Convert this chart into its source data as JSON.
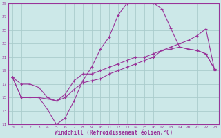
{
  "xlabel": "Windchill (Refroidissement éolien,°C)",
  "background_color": "#cce8e8",
  "grid_color": "#aacccc",
  "line_color": "#993399",
  "xlim": [
    -0.5,
    23.5
  ],
  "ylim": [
    11,
    29
  ],
  "yticks": [
    11,
    13,
    15,
    17,
    19,
    21,
    23,
    25,
    27,
    29
  ],
  "xticks": [
    0,
    1,
    2,
    3,
    4,
    5,
    6,
    7,
    8,
    9,
    10,
    11,
    12,
    13,
    14,
    15,
    16,
    17,
    18,
    19,
    20,
    21,
    22,
    23
  ],
  "line1_x": [
    0,
    1,
    2,
    3,
    4,
    5,
    6,
    7,
    8,
    9,
    10,
    11,
    12,
    13,
    14,
    15,
    16,
    17,
    18,
    19,
    20,
    21,
    22,
    23
  ],
  "line1_y": [
    18.0,
    17.0,
    17.0,
    16.5,
    15.0,
    14.5,
    15.0,
    16.2,
    17.2,
    17.5,
    17.8,
    18.5,
    19.0,
    19.5,
    20.0,
    20.5,
    21.0,
    22.0,
    22.5,
    23.0,
    23.5,
    24.2,
    25.2,
    19.0
  ],
  "line2_x": [
    0,
    1,
    3,
    4,
    5,
    6,
    7,
    8,
    9,
    10,
    11,
    12,
    13,
    14,
    15,
    16,
    17,
    18,
    19,
    20,
    21,
    22,
    23
  ],
  "line2_y": [
    18.0,
    15.0,
    15.0,
    13.2,
    11.0,
    12.0,
    14.5,
    17.5,
    19.5,
    22.2,
    24.0,
    27.2,
    29.0,
    29.2,
    29.2,
    29.1,
    28.2,
    25.3,
    22.5,
    22.2,
    22.0,
    21.5,
    19.2
  ],
  "line3_x": [
    0,
    1,
    2,
    3,
    4,
    5,
    6,
    7,
    8,
    9,
    10,
    11,
    12,
    13,
    14,
    15,
    16,
    17,
    18,
    19,
    20,
    21,
    22,
    23
  ],
  "line3_y": [
    18.0,
    15.0,
    15.0,
    15.0,
    14.8,
    14.5,
    15.5,
    17.5,
    18.5,
    18.5,
    19.0,
    19.5,
    20.0,
    20.5,
    21.0,
    21.0,
    21.5,
    22.0,
    22.2,
    22.5,
    22.2,
    22.0,
    21.5,
    19.2
  ]
}
